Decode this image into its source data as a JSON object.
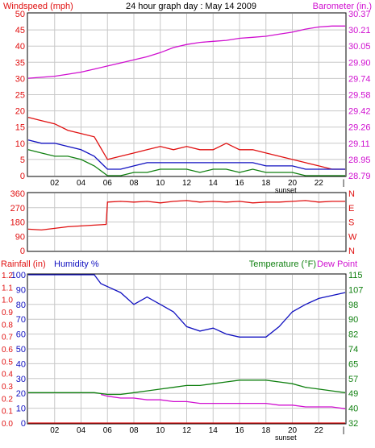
{
  "colors": {
    "red": "#e01010",
    "blue": "#1010c0",
    "green": "#108010",
    "magenta": "#d010d0",
    "grid": "#c8c8c8",
    "axis": "#000000"
  },
  "chart_data": [
    {
      "type": "line",
      "panel": "wind-barometer",
      "title": "24 hour graph day : May 14 2009",
      "left_label": "Windspeed (mph)",
      "right_label": "Barometer (in.)",
      "x_tick_labels": [
        "02",
        "04",
        "06",
        "08",
        "10",
        "12",
        "14",
        "16",
        "18",
        "20",
        "22",
        "|"
      ],
      "x_marker": "sunset",
      "x_range": [
        0,
        24
      ],
      "y_left": {
        "range": [
          0,
          50
        ],
        "ticks": [
          "0",
          "5",
          "10",
          "15",
          "20",
          "25",
          "30",
          "35",
          "40",
          "45",
          "50"
        ]
      },
      "y_right": {
        "range": [
          28.79,
          30.37
        ],
        "ticks": [
          "28.79",
          "28.95",
          "29.11",
          "29.26",
          "29.42",
          "29.58",
          "29.74",
          "29.90",
          "30.05",
          "30.21",
          "30.37"
        ]
      },
      "series": [
        {
          "color": "magenta",
          "axis": "right",
          "x": [
            0,
            1,
            2,
            3,
            4,
            5,
            6,
            7,
            8,
            9,
            10,
            11,
            12,
            13,
            14,
            15,
            16,
            17,
            18,
            19,
            20,
            21,
            22,
            23,
            24
          ],
          "values": [
            29.74,
            29.75,
            29.76,
            29.78,
            29.8,
            29.83,
            29.86,
            29.89,
            29.92,
            29.95,
            29.99,
            30.04,
            30.07,
            30.09,
            30.1,
            30.11,
            30.13,
            30.14,
            30.15,
            30.17,
            30.19,
            30.22,
            30.24,
            30.25,
            30.25
          ]
        },
        {
          "color": "red",
          "axis": "left",
          "x": [
            0,
            1,
            2,
            3,
            4,
            5,
            6,
            7,
            8,
            9,
            10,
            11,
            12,
            13,
            14,
            15,
            16,
            17,
            18,
            19,
            20,
            21,
            22,
            23,
            24
          ],
          "values": [
            18,
            17,
            16,
            14,
            13,
            12,
            5,
            6,
            7,
            8,
            9,
            8,
            9,
            8,
            8,
            10,
            8,
            8,
            7,
            6,
            5,
            4,
            3,
            2,
            2
          ]
        },
        {
          "color": "blue",
          "axis": "left",
          "x": [
            0,
            1,
            2,
            3,
            4,
            5,
            6,
            7,
            8,
            9,
            10,
            11,
            12,
            13,
            14,
            15,
            16,
            17,
            18,
            19,
            20,
            21,
            22,
            23,
            24
          ],
          "values": [
            11,
            10,
            10,
            9,
            8,
            6,
            2,
            2,
            3,
            4,
            4,
            4,
            4,
            4,
            4,
            4,
            4,
            4,
            3,
            3,
            3,
            2,
            2,
            2,
            2
          ]
        },
        {
          "color": "green",
          "axis": "left",
          "x": [
            0,
            1,
            2,
            3,
            4,
            5,
            6,
            7,
            8,
            9,
            10,
            11,
            12,
            13,
            14,
            15,
            16,
            17,
            18,
            19,
            20,
            21,
            22,
            23,
            24
          ],
          "values": [
            8,
            7,
            6,
            6,
            5,
            3,
            0,
            0,
            1,
            1,
            2,
            2,
            2,
            1,
            2,
            2,
            1,
            2,
            1,
            1,
            1,
            0,
            0,
            0,
            0
          ]
        }
      ]
    },
    {
      "type": "line",
      "panel": "wind-direction",
      "x_range": [
        0,
        24
      ],
      "y_left": {
        "range": [
          0,
          360
        ],
        "ticks": [
          "0",
          "90",
          "180",
          "270",
          "360"
        ]
      },
      "y_right_labels": [
        "N",
        "W",
        "S",
        "E",
        "N"
      ],
      "series": [
        {
          "color": "red",
          "axis": "left",
          "x": [
            0,
            1,
            2,
            3,
            4,
            5,
            5.9,
            6,
            7,
            8,
            9,
            10,
            11,
            12,
            13,
            14,
            15,
            16,
            17,
            18,
            19,
            20,
            21,
            22,
            23,
            24
          ],
          "values": [
            135,
            130,
            140,
            150,
            155,
            160,
            165,
            305,
            310,
            305,
            310,
            300,
            310,
            315,
            305,
            310,
            305,
            310,
            300,
            305,
            305,
            310,
            315,
            305,
            310,
            310
          ]
        }
      ]
    },
    {
      "type": "line",
      "panel": "rain-humidity-temperature",
      "left_labels": [
        "Rainfall (in)",
        "Humidity %"
      ],
      "right_labels": [
        "Temperature (°F)",
        "Dew Point"
      ],
      "x_tick_labels": [
        "02",
        "04",
        "06",
        "08",
        "10",
        "12",
        "14",
        "16",
        "18",
        "20",
        "22",
        "|"
      ],
      "x_marker": "sunset",
      "x_range": [
        0,
        24
      ],
      "y_rain_ticks": [
        "0.0",
        "0.1",
        "0.2",
        "0.3",
        "0.4",
        "0.5",
        "0.6",
        "0.7",
        "0.8",
        "0.9",
        "1.0",
        "1.1",
        "1.2"
      ],
      "y_humidity": {
        "range": [
          0,
          100
        ],
        "ticks": [
          "0",
          "10",
          "20",
          "30",
          "40",
          "50",
          "60",
          "70",
          "80",
          "90",
          "100"
        ]
      },
      "y_right": {
        "range": [
          32,
          115
        ],
        "ticks": [
          "32",
          "40",
          "49",
          "57",
          "65",
          "74",
          "82",
          "90",
          "98",
          "107",
          "115"
        ]
      },
      "series": [
        {
          "color": "blue",
          "axis": "humidity",
          "x": [
            0,
            1,
            2,
            3,
            4,
            5,
            5.5,
            6,
            7,
            8,
            9,
            10,
            11,
            12,
            13,
            14,
            15,
            16,
            17,
            18,
            19,
            20,
            21,
            22,
            23,
            24
          ],
          "values": [
            100,
            100,
            100,
            100,
            100,
            100,
            94,
            92,
            88,
            80,
            85,
            80,
            75,
            65,
            62,
            64,
            60,
            58,
            58,
            58,
            65,
            75,
            80,
            84,
            86,
            88
          ]
        },
        {
          "color": "green",
          "axis": "right",
          "x": [
            0,
            1,
            2,
            3,
            4,
            5,
            6,
            7,
            8,
            9,
            10,
            11,
            12,
            13,
            14,
            15,
            16,
            17,
            18,
            19,
            20,
            21,
            22,
            23,
            24
          ],
          "values": [
            49,
            49,
            49,
            49,
            49,
            49,
            48,
            48,
            49,
            50,
            51,
            52,
            53,
            53,
            54,
            55,
            56,
            56,
            56,
            55,
            54,
            52,
            51,
            50,
            49
          ]
        },
        {
          "color": "magenta",
          "axis": "right",
          "x": [
            0,
            5.5,
            6,
            7,
            8,
            9,
            10,
            11,
            12,
            13,
            14,
            15,
            16,
            17,
            18,
            19,
            20,
            21,
            22,
            23,
            24
          ],
          "values": [
            null,
            48,
            47,
            46,
            46,
            45,
            45,
            44,
            44,
            43,
            43,
            43,
            43,
            43,
            43,
            42,
            42,
            41,
            41,
            41,
            40
          ]
        },
        {
          "color": "red",
          "axis": "rain",
          "x": [
            0,
            24
          ],
          "values": [
            0,
            0
          ]
        }
      ]
    }
  ]
}
